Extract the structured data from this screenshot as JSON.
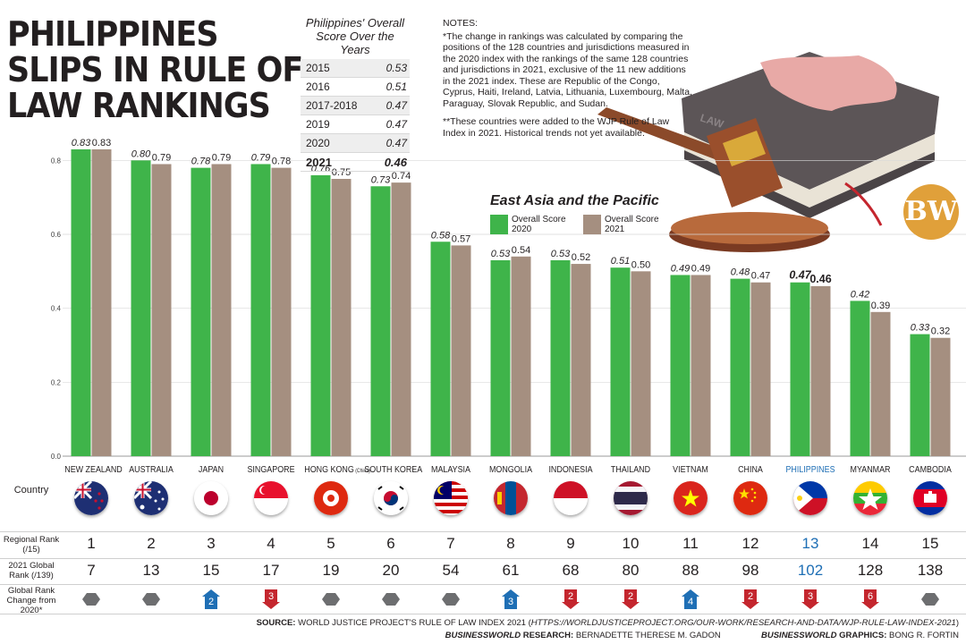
{
  "title": [
    "PHILIPPINES",
    "SLIPS IN RULE OF",
    "LAW RANKINGS"
  ],
  "score_table": {
    "title": "Philippines' Overall Score Over the Years",
    "rows": [
      {
        "year": "2015",
        "score": "0.53"
      },
      {
        "year": "2016",
        "score": "0.51"
      },
      {
        "year": "2017-2018",
        "score": "0.47"
      },
      {
        "year": "2019",
        "score": "0.47"
      },
      {
        "year": "2020",
        "score": "0.47"
      },
      {
        "year": "2021",
        "score": "0.46"
      }
    ]
  },
  "notes": {
    "heading": "NOTES:",
    "note1": "*The change in rankings was calculated by comparing the positions of the 128 countries and jurisdictions measured in the 2020 index with the rankings of the same 128 countries and jurisdictions in 2021, exclusive of the 11 new additions in the 2021 index. These are Republic of the Congo, Cyprus, Haiti, Ireland, Latvia, Lithuania, Luxembourg, Malta, Paraguay, Slovak Republic, and Sudan.",
    "note2": "**These countries were added to the WJP Rule of Law Index in 2021. Historical trends not yet available."
  },
  "legend": {
    "title": "East Asia and the Pacific",
    "item_2020": "Overall Score 2020",
    "item_2021": "Overall Score 2021"
  },
  "logo_text": "BW",
  "gavel_label": "LAW",
  "colors": {
    "score_2020": "#3fb44a",
    "score_2021": "#a58f80",
    "philippines": "#1f6fb5",
    "rank_up": "#1f6fb5",
    "rank_down": "#c4262e",
    "rank_same": "#6d6e70"
  },
  "table_labels": {
    "country": "Country",
    "regional_rank": "Regional Rank (/15)",
    "global_rank": "2021 Global Rank (/139)",
    "rank_change": "Global Rank Change from 2020*"
  },
  "chart_data": {
    "type": "bar",
    "ylim": [
      0,
      0.9
    ],
    "yticks": [
      "0.0",
      "0.2",
      "0.4",
      "0.6",
      "0.8"
    ],
    "categories": [
      "NEW ZEALAND",
      "AUSTRALIA",
      "JAPAN",
      "SINGAPORE",
      "HONG KONG",
      "SOUTH KOREA",
      "MALAYSIA",
      "MONGOLIA",
      "INDONESIA",
      "THAILAND",
      "VIETNAM",
      "CHINA",
      "PHILIPPINES",
      "MYANMAR",
      "CAMBODIA"
    ],
    "category_note": {
      "HONG KONG": "(China)"
    },
    "highlight": "PHILIPPINES",
    "series": [
      {
        "name": "Overall Score 2020",
        "values": [
          0.83,
          0.8,
          0.78,
          0.79,
          0.76,
          0.73,
          0.58,
          0.53,
          0.53,
          0.51,
          0.49,
          0.48,
          0.47,
          0.42,
          0.33
        ],
        "labels": [
          "0.83",
          "0.80",
          "0.78",
          "0.79",
          "0.76",
          "0.73",
          "0.58",
          "0.53",
          "0.53",
          "0.51",
          "0.49",
          "0.48",
          "0.47",
          "0.42",
          "0.33"
        ]
      },
      {
        "name": "Overall Score 2021",
        "values": [
          0.83,
          0.79,
          0.79,
          0.78,
          0.75,
          0.74,
          0.57,
          0.54,
          0.52,
          0.5,
          0.49,
          0.47,
          0.46,
          0.39,
          0.32
        ],
        "labels": [
          "0.83",
          "0.79",
          "0.79",
          "0.78",
          "0.75",
          "0.74",
          "0.57",
          "0.54",
          "0.52",
          "0.50",
          "0.49",
          "0.47",
          "0.46",
          "0.39",
          "0.32"
        ]
      }
    ],
    "regional_rank": [
      "1",
      "2",
      "3",
      "4",
      "5",
      "6",
      "7",
      "8",
      "9",
      "10",
      "11",
      "12",
      "13",
      "14",
      "15"
    ],
    "global_rank": [
      "7",
      "13",
      "15",
      "17",
      "19",
      "20",
      "54",
      "61",
      "68",
      "80",
      "88",
      "98",
      "102",
      "128",
      "138"
    ],
    "rank_change": [
      {
        "dir": "same",
        "value": ""
      },
      {
        "dir": "same",
        "value": ""
      },
      {
        "dir": "up",
        "value": "2"
      },
      {
        "dir": "down",
        "value": "3"
      },
      {
        "dir": "same",
        "value": ""
      },
      {
        "dir": "same",
        "value": ""
      },
      {
        "dir": "same",
        "value": ""
      },
      {
        "dir": "up",
        "value": "3"
      },
      {
        "dir": "down",
        "value": "2"
      },
      {
        "dir": "down",
        "value": "2"
      },
      {
        "dir": "up",
        "value": "4"
      },
      {
        "dir": "down",
        "value": "2"
      },
      {
        "dir": "down",
        "value": "3"
      },
      {
        "dir": "down",
        "value": "6"
      },
      {
        "dir": "same",
        "value": ""
      }
    ]
  },
  "footer": {
    "source_label": "SOURCE:",
    "source_text": "WORLD JUSTICE PROJECT'S RULE OF LAW INDEX 2021 (",
    "source_url": "HTTPS://WORLDJUSTICEPROJECT.ORG/OUR-WORK/RESEARCH-AND-DATA/WJP-RULE-LAW-INDEX-2021",
    "source_close": ")",
    "research_brand": "BUSINESSWORLD",
    "research_label": "RESEARCH:",
    "research_name": "BERNADETTE THERESE M. GADON",
    "graphics_brand": "BUSINESSWORLD",
    "graphics_label": "GRAPHICS:",
    "graphics_name": "BONG R. FORTIN"
  }
}
